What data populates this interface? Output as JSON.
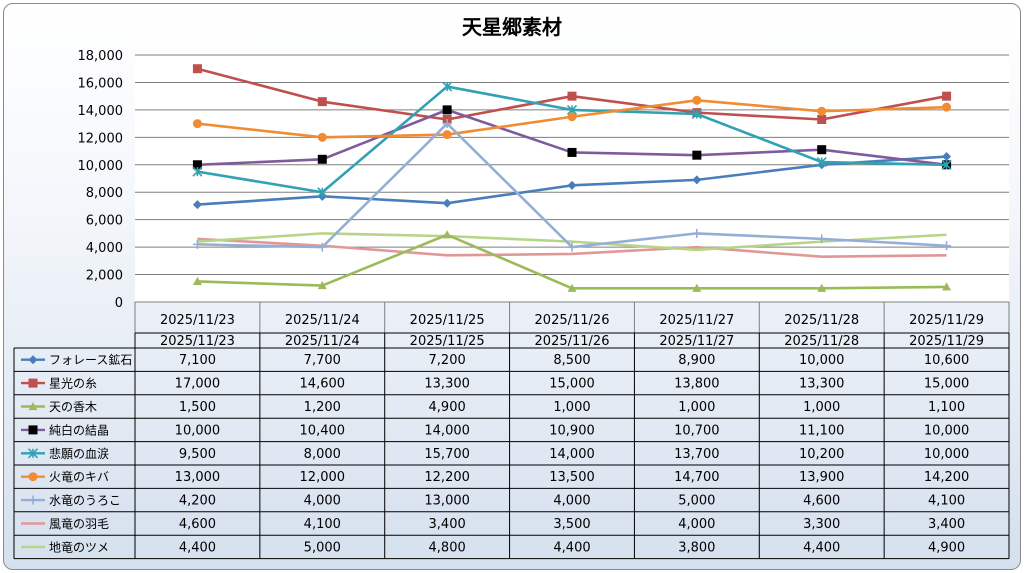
{
  "chart_data": {
    "type": "line",
    "title": "天星郷素材",
    "categories": [
      "2025/11/23",
      "2025/11/24",
      "2025/11/25",
      "2025/11/26",
      "2025/11/27",
      "2025/11/28",
      "2025/11/29"
    ],
    "ylim": [
      0,
      18000
    ],
    "ytick_labels": [
      "0",
      "2,000",
      "4,000",
      "6,000",
      "8,000",
      "10,000",
      "12,000",
      "14,000",
      "16,000",
      "18,000"
    ],
    "grid": true,
    "legend": "data-table",
    "series": [
      {
        "name": "フォレース鉱石",
        "color": "#4a7ebb",
        "marker": "diamond",
        "values": [
          7100,
          7700,
          7200,
          8500,
          8900,
          10000,
          10600
        ],
        "labels": [
          "7,100",
          "7,700",
          "7,200",
          "8,500",
          "8,900",
          "10,000",
          "10,600"
        ]
      },
      {
        "name": "星光の糸",
        "color": "#c0504d",
        "marker": "square",
        "values": [
          17000,
          14600,
          13300,
          15000,
          13800,
          13300,
          15000
        ],
        "labels": [
          "17,000",
          "14,600",
          "13,300",
          "15,000",
          "13,800",
          "13,300",
          "15,000"
        ]
      },
      {
        "name": "天の香木",
        "color": "#9bbb59",
        "marker": "triangle",
        "values": [
          1500,
          1200,
          4900,
          1000,
          1000,
          1000,
          1100
        ],
        "labels": [
          "1,500",
          "1,200",
          "4,900",
          "1,000",
          "1,000",
          "1,000",
          "1,100"
        ]
      },
      {
        "name": "純白の結晶",
        "color": "#7f5b9e",
        "marker": "square-black",
        "values": [
          10000,
          10400,
          14000,
          10900,
          10700,
          11100,
          10000
        ],
        "labels": [
          "10,000",
          "10,400",
          "14,000",
          "10,900",
          "10,700",
          "11,100",
          "10,000"
        ]
      },
      {
        "name": "悲願の血涙",
        "color": "#31a2b4",
        "marker": "star",
        "values": [
          9500,
          8000,
          15700,
          14000,
          13700,
          10200,
          10000
        ],
        "labels": [
          "9,500",
          "8,000",
          "15,700",
          "14,000",
          "13,700",
          "10,200",
          "10,000"
        ]
      },
      {
        "name": "火竜のキバ",
        "color": "#f08c32",
        "marker": "circle",
        "values": [
          13000,
          12000,
          12200,
          13500,
          14700,
          13900,
          14200
        ],
        "labels": [
          "13,000",
          "12,000",
          "12,200",
          "13,500",
          "14,700",
          "13,900",
          "14,200"
        ]
      },
      {
        "name": "水竜のうろこ",
        "color": "#95aed6",
        "marker": "plus",
        "values": [
          4200,
          4000,
          13000,
          4000,
          5000,
          4600,
          4100
        ],
        "labels": [
          "4,200",
          "4,000",
          "13,000",
          "4,000",
          "5,000",
          "4,600",
          "4,100"
        ]
      },
      {
        "name": "風竜の羽毛",
        "color": "#e29797",
        "marker": "none",
        "values": [
          4600,
          4100,
          3400,
          3500,
          4000,
          3300,
          3400
        ],
        "labels": [
          "4,600",
          "4,100",
          "3,400",
          "3,500",
          "4,000",
          "3,300",
          "3,400"
        ]
      },
      {
        "name": "地竜のツメ",
        "color": "#b8d488",
        "marker": "none",
        "values": [
          4400,
          5000,
          4800,
          4400,
          3800,
          4400,
          4900
        ],
        "labels": [
          "4,400",
          "5,000",
          "4,800",
          "4,400",
          "3,800",
          "4,400",
          "4,900"
        ]
      }
    ]
  }
}
